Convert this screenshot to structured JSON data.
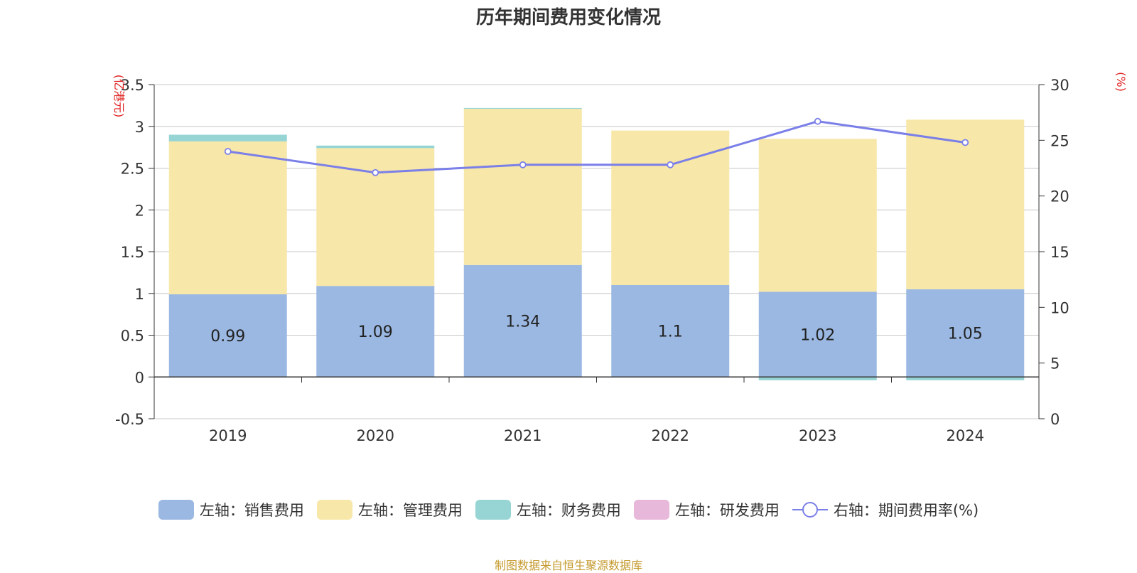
{
  "chart_data": {
    "type": "bar",
    "title": "历年期间费用变化情况",
    "left_unit": "(亿港元)",
    "right_unit": "(%)",
    "categories": [
      "2019",
      "2020",
      "2021",
      "2022",
      "2023",
      "2024"
    ],
    "left_ylim": [
      -0.5,
      3.5
    ],
    "left_ticks": [
      "3.5",
      "3",
      "2.5",
      "2",
      "1.5",
      "1",
      "0.5",
      "0",
      "-0.5"
    ],
    "right_ylim": [
      0,
      30
    ],
    "right_ticks": [
      "30",
      "25",
      "20",
      "15",
      "10",
      "5",
      "0"
    ],
    "grid": true,
    "legend_position": "bottom",
    "series": [
      {
        "name": "左轴：销售费用",
        "axis": "left",
        "kind": "bar",
        "color": "#9bb8e2",
        "values": [
          0.99,
          1.09,
          1.34,
          1.1,
          1.02,
          1.05
        ],
        "labels": [
          "0.99",
          "1.09",
          "1.34",
          "1.1",
          "1.02",
          "1.05"
        ]
      },
      {
        "name": "左轴：管理费用",
        "axis": "left",
        "kind": "bar",
        "color": "#f7e7a8",
        "values": [
          1.83,
          1.65,
          1.87,
          1.85,
          1.83,
          2.03
        ]
      },
      {
        "name": "左轴：财务费用",
        "axis": "left",
        "kind": "bar",
        "color": "#97d5d4",
        "values": [
          0.08,
          0.03,
          0.01,
          0.0,
          -0.04,
          -0.04
        ]
      },
      {
        "name": "左轴：研发费用",
        "axis": "left",
        "kind": "bar",
        "color": "#e7b8da",
        "values": [
          0,
          0,
          0,
          0,
          0,
          0
        ]
      },
      {
        "name": "右轴：期间费用率(%)",
        "axis": "right",
        "kind": "line",
        "color": "#7b7fe8",
        "values": [
          24.0,
          22.1,
          22.8,
          22.8,
          26.7,
          24.8
        ]
      }
    ],
    "source_note": "制图数据来自恒生聚源数据库"
  }
}
